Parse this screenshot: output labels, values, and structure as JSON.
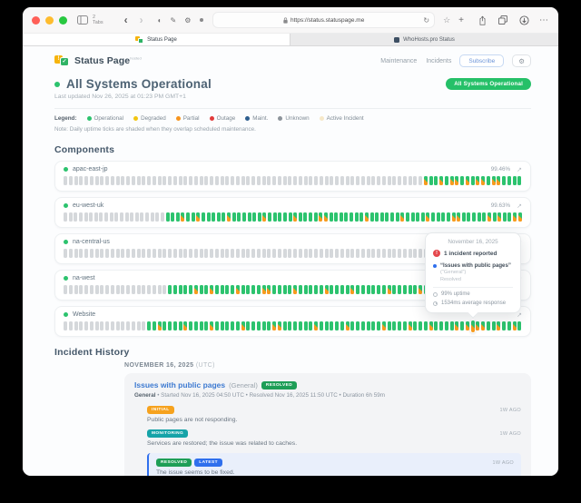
{
  "browser": {
    "tabs_label": "2 Tabs",
    "url": "https://status.statuspage.me",
    "tabs": [
      {
        "label": "Status Page"
      },
      {
        "label": "WhoHosts.pro Status"
      }
    ]
  },
  "header": {
    "brand": "Status Page",
    "brand_tag": "hosted",
    "nav": [
      "Maintenance",
      "Incidents"
    ],
    "subscribe": "Subscribe",
    "gear": "⚙",
    "status_pill": "All Systems Operational"
  },
  "status": {
    "title": "All Systems Operational",
    "last_updated": "Last updated Nov 26, 2025 at 01:23 PM GMT+1"
  },
  "legend": {
    "label": "Legend:",
    "note": "Note: Daily uptime ticks are shaded when they overlap scheduled maintenance.",
    "items": [
      {
        "label": "Operational",
        "color": "#2cc36e"
      },
      {
        "label": "Degraded",
        "color": "#f2c511"
      },
      {
        "label": "Partial",
        "color": "#f7941e"
      },
      {
        "label": "Outage",
        "color": "#e23b3b"
      },
      {
        "label": "Maint.",
        "color": "#2d5e8f"
      },
      {
        "label": "Unknown",
        "color": "#8d949b"
      },
      {
        "label": "Active Incident",
        "color": "#f6e8c8"
      }
    ]
  },
  "components": {
    "heading": "Components",
    "rows": [
      {
        "name": "apac-east-jp",
        "uptime": "99.46%",
        "ticks": "uuuuuuuuuuuuuuuuuuuuuuuuuuuuuuuuuuuuuuuuuuuuuuuuuuuuuuuuuuuuuuuuuuuuumggmgmmgmgmmgmmgggg"
      },
      {
        "name": "eu-west-uk",
        "uptime": "99.63%",
        "ticks": "uuuuuuuuuuuuuuuuuuuugggmggmgggggmggggggmgggggmggggmmgggggggmggggggmggggmggggmmgggggmgmggmm"
      },
      {
        "name": "na-central-us",
        "uptime": "",
        "ticks": "uuuuuuuuuuuuuuuuuuuuuuuuuuuuuuuuuuuuuuuuuuuuuuuuuuuuuuuuuuuuuuuuuuuuuuuuuuuuuuuuuugggggg"
      },
      {
        "name": "na-west",
        "uptime": "",
        "ticks": "uuuuuuuuuuuuuuuuuuuugggggmggmggggmggggmmggggmgggggmggggmggggggmgggggmggggggmggmmggggmggg"
      },
      {
        "name": "Website",
        "uptime": "",
        "ticks": "uuuuuuuuuuuuuuuuggmggggmggggmgggggmgggggmmggggggmgggggmggggggmggggmgggmggggmgmhmmggmggmg"
      }
    ]
  },
  "tooltip": {
    "date": "November 16, 2025",
    "incidents": "1 incident reported",
    "incident_title": "“Issues with public pages”",
    "incident_scope": "(“General”)",
    "incident_state": "Resolved",
    "uptime": "99% uptime",
    "response": "1534ms average response"
  },
  "incidents": {
    "heading": "Incident History",
    "date": "NOVEMBER 16, 2025",
    "tz": "(UTC)",
    "card": {
      "title": "Issues with public pages",
      "scope": "(General)",
      "badge": "RESOLVED",
      "meta_bold": "General",
      "meta_rest": " • Started Nov 16, 2025 04:50 UTC • Resolved Nov 16, 2025 11:50 UTC • Duration 6h 59m",
      "updates": [
        {
          "badges": [
            "INITIAL"
          ],
          "ago": "1W AGO",
          "text": "Public pages are not responding.",
          "dot": "#a6adb5",
          "highlight": false
        },
        {
          "badges": [
            "MONITORING"
          ],
          "ago": "1W AGO",
          "text": "Services are restored; the issue was related to caches.",
          "dot": "#16a3a8",
          "highlight": false
        },
        {
          "badges": [
            "RESOLVED",
            "LATEST"
          ],
          "ago": "1W AGO",
          "text": "The issue seems to be fixed.",
          "dot": "#1f9d5b",
          "highlight": true
        }
      ]
    }
  },
  "badge_colors": {
    "INITIAL": "#f6a21e",
    "MONITORING": "#16a3a8",
    "RESOLVED": "#1e9e57",
    "LATEST": "#2f6fed"
  }
}
